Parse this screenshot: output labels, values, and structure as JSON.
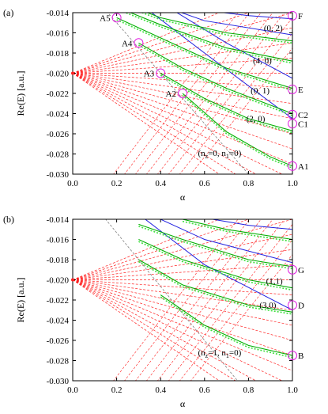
{
  "colors": {
    "red": "#ff2020",
    "green": "#00b000",
    "lightgreen": "#40e040",
    "blue": "#2020e0",
    "magenta": "#e020e0",
    "gray": "#808080"
  },
  "chart_data": [
    {
      "type": "line",
      "panel_label": "(a)",
      "xlabel": "α",
      "ylabel": "Re(E) [a.u.]",
      "xlim": [
        0,
        1
      ],
      "ylim": [
        -0.03,
        -0.014
      ],
      "xticks": [
        "0.0",
        "0.2",
        "0.4",
        "0.6",
        "0.8",
        "1.0"
      ],
      "yticks": [
        "-0.014",
        "-0.016",
        "-0.018",
        "-0.020",
        "-0.022",
        "-0.024",
        "-0.026",
        "-0.028",
        "-0.030"
      ],
      "fan_origin": [
        0,
        -0.02
      ],
      "red_dashed_end_values_at_1": [
        -0.011,
        -0.0125,
        -0.014,
        -0.0155,
        -0.017,
        -0.0185,
        -0.02,
        -0.0215,
        -0.023,
        -0.0245,
        -0.026,
        -0.0275,
        -0.029,
        -0.0305,
        -0.032,
        -0.0335,
        -0.035
      ],
      "gray_dashed": {
        "x": [
          0,
          0.8
        ],
        "y": [
          -0.01,
          -0.03
        ]
      },
      "green_curves": [
        {
          "x": [
            0.5,
            0.7,
            0.9,
            1.0
          ],
          "y": [
            -0.022,
            -0.0258,
            -0.0283,
            -0.0292
          ]
        },
        {
          "x": [
            0.4,
            0.6,
            0.8,
            1.0
          ],
          "y": [
            -0.02,
            -0.0225,
            -0.0245,
            -0.0257
          ]
        },
        {
          "x": [
            0.3,
            0.5,
            0.7,
            1.0
          ],
          "y": [
            -0.017,
            -0.0195,
            -0.0215,
            -0.024
          ]
        },
        {
          "x": [
            0.2,
            0.4,
            0.7,
            1.0
          ],
          "y": [
            -0.0145,
            -0.0165,
            -0.0195,
            -0.0215
          ]
        },
        {
          "x": [
            0.15,
            0.4,
            0.7,
            1.0
          ],
          "y": [
            -0.013,
            -0.0152,
            -0.0175,
            -0.0188
          ]
        },
        {
          "x": [
            0.1,
            0.4,
            0.7,
            1.0
          ],
          "y": [
            -0.012,
            -0.0145,
            -0.016,
            -0.0168
          ]
        }
      ],
      "blue_curves": [
        {
          "x": [
            0.3,
            0.6,
            1.0
          ],
          "y": [
            -0.013,
            -0.018,
            -0.0245
          ]
        },
        {
          "x": [
            0.4,
            0.7,
            1.0
          ],
          "y": [
            -0.013,
            -0.017,
            -0.0205
          ]
        },
        {
          "x": [
            0.3,
            0.6,
            1.0
          ],
          "y": [
            -0.0125,
            -0.0148,
            -0.0162
          ]
        },
        {
          "x": [
            0.5,
            0.8,
            1.0
          ],
          "y": [
            -0.0135,
            -0.0143,
            -0.0146
          ]
        }
      ],
      "markers": [
        {
          "label": "A1",
          "x": 1.0,
          "y": -0.0292
        },
        {
          "label": "A2",
          "x": 0.5,
          "y": -0.022
        },
        {
          "label": "A3",
          "x": 0.4,
          "y": -0.02
        },
        {
          "label": "A4",
          "x": 0.3,
          "y": -0.017
        },
        {
          "label": "A5",
          "x": 0.2,
          "y": -0.0145
        },
        {
          "label": "C1",
          "x": 1.0,
          "y": -0.025
        },
        {
          "label": "C2",
          "x": 1.0,
          "y": -0.0241
        },
        {
          "label": "E",
          "x": 1.0,
          "y": -0.0216
        },
        {
          "label": "F",
          "x": 1.0,
          "y": -0.0143
        }
      ],
      "annotations": [
        {
          "text": "(0, 2)",
          "x": 0.87,
          "y": -0.0158
        },
        {
          "text": "(4, 0)",
          "x": 0.82,
          "y": -0.019
        },
        {
          "text": "(0, 1)",
          "x": 0.81,
          "y": -0.022
        },
        {
          "text": "(2, 0)",
          "x": 0.79,
          "y": -0.0248
        },
        {
          "text": "(n_z=0, n_1=0)",
          "x": 0.57,
          "y": -0.0282
        }
      ]
    },
    {
      "type": "line",
      "panel_label": "(b)",
      "xlabel": "α",
      "ylabel": "Re(E) [a.u.]",
      "xlim": [
        0,
        1
      ],
      "ylim": [
        -0.03,
        -0.014
      ],
      "xticks": [
        "0.0",
        "0.2",
        "0.4",
        "0.6",
        "0.8",
        "1.0"
      ],
      "yticks": [
        "-0.014",
        "-0.016",
        "-0.018",
        "-0.020",
        "-0.022",
        "-0.024",
        "-0.026",
        "-0.028",
        "-0.030"
      ],
      "fan_origin": [
        0,
        -0.02
      ],
      "red_dashed_end_values_at_1": [
        -0.011,
        -0.0125,
        -0.014,
        -0.0155,
        -0.017,
        -0.0185,
        -0.02,
        -0.0215,
        -0.023,
        -0.0245,
        -0.026,
        -0.0275,
        -0.029,
        -0.0305,
        -0.032,
        -0.0335,
        -0.035
      ],
      "gray_dashed": {
        "x": [
          0,
          0.75
        ],
        "y": [
          -0.01,
          -0.03
        ]
      },
      "green_curves": [
        {
          "x": [
            0.4,
            0.6,
            0.8,
            1.0
          ],
          "y": [
            -0.0215,
            -0.0245,
            -0.0265,
            -0.0275
          ]
        },
        {
          "x": [
            0.3,
            0.5,
            0.8,
            1.0
          ],
          "y": [
            -0.018,
            -0.0205,
            -0.0225,
            -0.0232
          ]
        },
        {
          "x": [
            0.3,
            0.5,
            0.8,
            1.0
          ],
          "y": [
            -0.016,
            -0.018,
            -0.02,
            -0.0208
          ]
        },
        {
          "x": [
            0.3,
            0.5,
            0.8,
            1.0
          ],
          "y": [
            -0.0145,
            -0.016,
            -0.018,
            -0.0187
          ]
        },
        {
          "x": [
            0.5,
            0.7,
            1.0
          ],
          "y": [
            -0.014,
            -0.015,
            -0.016
          ]
        }
      ],
      "blue_curves": [
        {
          "x": [
            0.3,
            0.6,
            1.0
          ],
          "y": [
            -0.0135,
            -0.0185,
            -0.023
          ]
        },
        {
          "x": [
            0.3,
            0.6,
            1.0
          ],
          "y": [
            -0.013,
            -0.016,
            -0.0183
          ]
        },
        {
          "x": [
            0.5,
            0.8,
            1.0
          ],
          "y": [
            -0.0135,
            -0.0146,
            -0.015
          ]
        }
      ],
      "markers": [
        {
          "label": "B",
          "x": 1.0,
          "y": -0.0275
        },
        {
          "label": "D",
          "x": 1.0,
          "y": -0.0225
        },
        {
          "label": "G",
          "x": 1.0,
          "y": -0.019
        }
      ],
      "annotations": [
        {
          "text": "(1,1)",
          "x": 0.88,
          "y": -0.0204
        },
        {
          "text": "(3,0)",
          "x": 0.85,
          "y": -0.0228
        },
        {
          "text": "(n_z=1, n_1=0)",
          "x": 0.57,
          "y": -0.0275
        }
      ]
    }
  ]
}
